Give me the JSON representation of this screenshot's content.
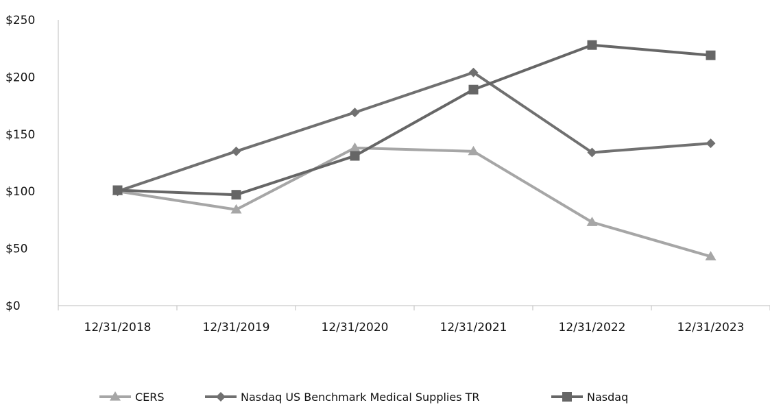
{
  "chart_data": {
    "type": "line",
    "title": "",
    "xlabel": "",
    "ylabel": "",
    "categories": [
      "12/31/2018",
      "12/31/2019",
      "12/31/2020",
      "12/31/2021",
      "12/31/2022",
      "12/31/2023"
    ],
    "y_ticks": [
      "$0",
      "$50",
      "$100",
      "$150",
      "$200",
      "$250"
    ],
    "ylim": [
      0,
      250
    ],
    "grid": false,
    "legend_position": "bottom",
    "series": [
      {
        "name": "CERS",
        "values": [
          100,
          84,
          138,
          135,
          73,
          43
        ],
        "color": "#a6a6a6",
        "marker": "triangle"
      },
      {
        "name": "Nasdaq US Benchmark Medical Supplies TR",
        "values": [
          100,
          135,
          169,
          204,
          134,
          142
        ],
        "color": "#707070",
        "marker": "diamond"
      },
      {
        "name": "Nasdaq",
        "values": [
          101,
          97,
          131,
          189,
          228,
          219
        ],
        "color": "#666666",
        "marker": "square"
      }
    ]
  }
}
